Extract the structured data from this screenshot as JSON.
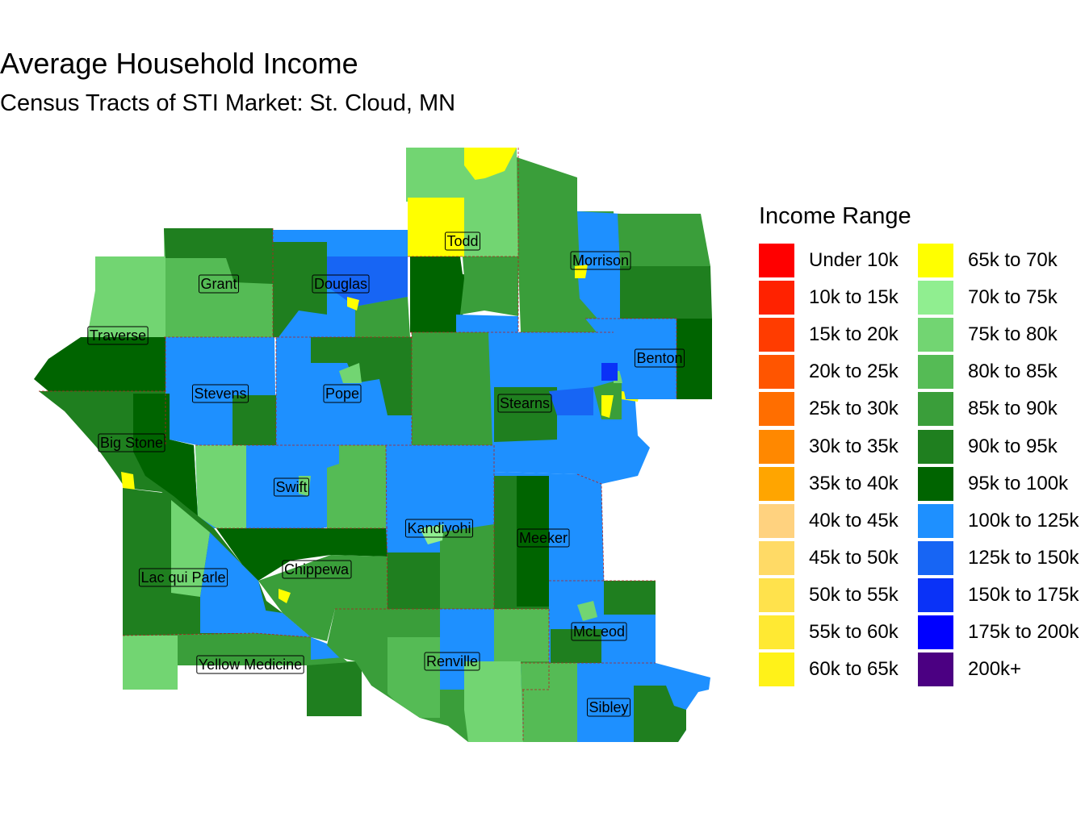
{
  "title": "Average Household Income",
  "subtitle": "Census Tracts of STI Market: St. Cloud, MN",
  "legend": {
    "title": "Income Range",
    "items": [
      {
        "label": "Under 10k",
        "color": "#FF0000"
      },
      {
        "label": "10k to 15k",
        "color": "#FF2200"
      },
      {
        "label": "15k to 20k",
        "color": "#FF3C00"
      },
      {
        "label": "20k to 25k",
        "color": "#FF5500"
      },
      {
        "label": "25k to 30k",
        "color": "#FF6E00"
      },
      {
        "label": "30k to 35k",
        "color": "#FF8800"
      },
      {
        "label": "35k to 40k",
        "color": "#FFA500"
      },
      {
        "label": "40k to 45k",
        "color": "#FFD27F"
      },
      {
        "label": "45k to 50k",
        "color": "#FFDA66"
      },
      {
        "label": "50k to 55k",
        "color": "#FFE24C"
      },
      {
        "label": "55k to 60k",
        "color": "#FFE933"
      },
      {
        "label": "60k to 65k",
        "color": "#FFF219"
      },
      {
        "label": "65k to 70k",
        "color": "#FFFF00"
      },
      {
        "label": "70k to 75k",
        "color": "#90EE90"
      },
      {
        "label": "75k to 80k",
        "color": "#72D572"
      },
      {
        "label": "80k to 85k",
        "color": "#55BB55"
      },
      {
        "label": "85k to 90k",
        "color": "#3A9E3A"
      },
      {
        "label": "90k to 95k",
        "color": "#1F7F1F"
      },
      {
        "label": "95k to 100k",
        "color": "#006400"
      },
      {
        "label": "100k to 125k",
        "color": "#1E90FF"
      },
      {
        "label": "125k to 150k",
        "color": "#1765F4"
      },
      {
        "label": "150k to 175k",
        "color": "#0A32F7"
      },
      {
        "label": "175k to 200k",
        "color": "#0000FF"
      },
      {
        "label": "200k+",
        "color": "#4B0082"
      }
    ]
  },
  "counties": [
    {
      "name": "Todd"
    },
    {
      "name": "Morrison"
    },
    {
      "name": "Grant"
    },
    {
      "name": "Douglas"
    },
    {
      "name": "Traverse"
    },
    {
      "name": "Benton"
    },
    {
      "name": "Stevens"
    },
    {
      "name": "Pope"
    },
    {
      "name": "Stearns"
    },
    {
      "name": "Big Stone"
    },
    {
      "name": "Swift"
    },
    {
      "name": "Kandiyohi"
    },
    {
      "name": "Meeker"
    },
    {
      "name": "Lac qui Parle"
    },
    {
      "name": "Chippewa"
    },
    {
      "name": "McLeod"
    },
    {
      "name": "Renville"
    },
    {
      "name": "Yellow Medicine"
    },
    {
      "name": "Sibley"
    }
  ]
}
